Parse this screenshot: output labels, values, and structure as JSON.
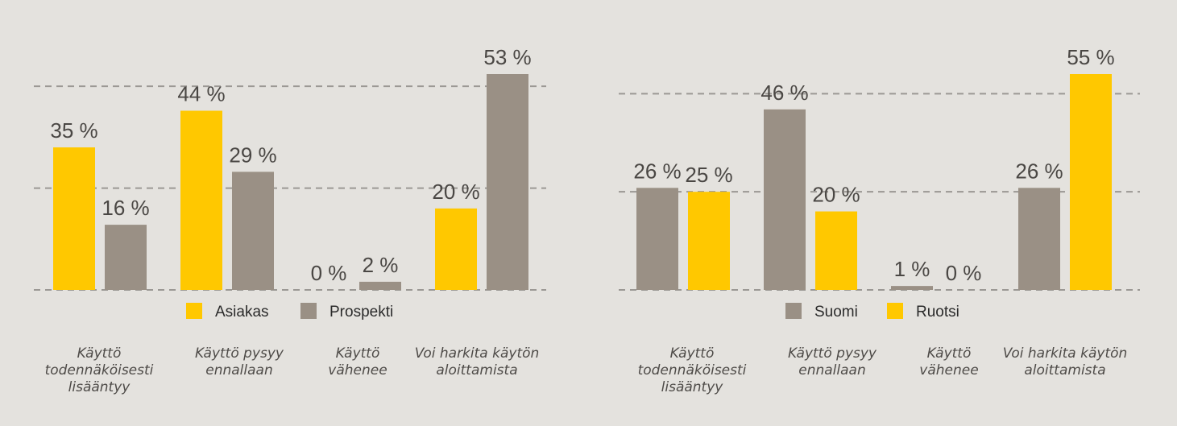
{
  "chart_data": [
    {
      "type": "bar",
      "categories": [
        "Käyttö todennäköisesti lisääntyy",
        "Käyttö pysyy ennallaan",
        "Käyttö vähenee",
        "Voi harkita käytön aloittamista"
      ],
      "category_lines": [
        [
          "Käyttö",
          "todennäköisesti",
          "lisääntyy"
        ],
        [
          "Käyttö pysyy",
          "ennallaan"
        ],
        [
          "Käyttö",
          "vähenee"
        ],
        [
          "Voi harkita käytön",
          "aloittamista"
        ]
      ],
      "series": [
        {
          "name": "Asiakas",
          "color": "#ffc800",
          "values": [
            35,
            44,
            0,
            20
          ]
        },
        {
          "name": "Prospekti",
          "color": "#9a9085",
          "values": [
            16,
            29,
            2,
            53
          ]
        }
      ],
      "value_suffix": " %",
      "ylim": [
        0,
        53
      ],
      "gridlines": [
        0,
        25,
        50
      ],
      "grid": true,
      "legend_position": "bottom"
    },
    {
      "type": "bar",
      "categories": [
        "Käyttö todennäköisesti lisääntyy",
        "Käyttö pysyy ennallaan",
        "Käyttö vähenee",
        "Voi harkita käytön aloittamista"
      ],
      "category_lines": [
        [
          "Käyttö",
          "todennäköisesti",
          "lisääntyy"
        ],
        [
          "Käyttö pysyy",
          "ennallaan"
        ],
        [
          "Käyttö",
          "vähenee"
        ],
        [
          "Voi harkita käytön",
          "aloittamista"
        ]
      ],
      "series": [
        {
          "name": "Suomi",
          "color": "#9a9085",
          "values": [
            26,
            46,
            1,
            26
          ]
        },
        {
          "name": "Ruotsi",
          "color": "#ffc800",
          "values": [
            25,
            20,
            0,
            55
          ]
        }
      ],
      "value_suffix": " %",
      "ylim": [
        0,
        55
      ],
      "gridlines": [
        0,
        25,
        50
      ],
      "grid": true,
      "legend_position": "bottom"
    }
  ]
}
